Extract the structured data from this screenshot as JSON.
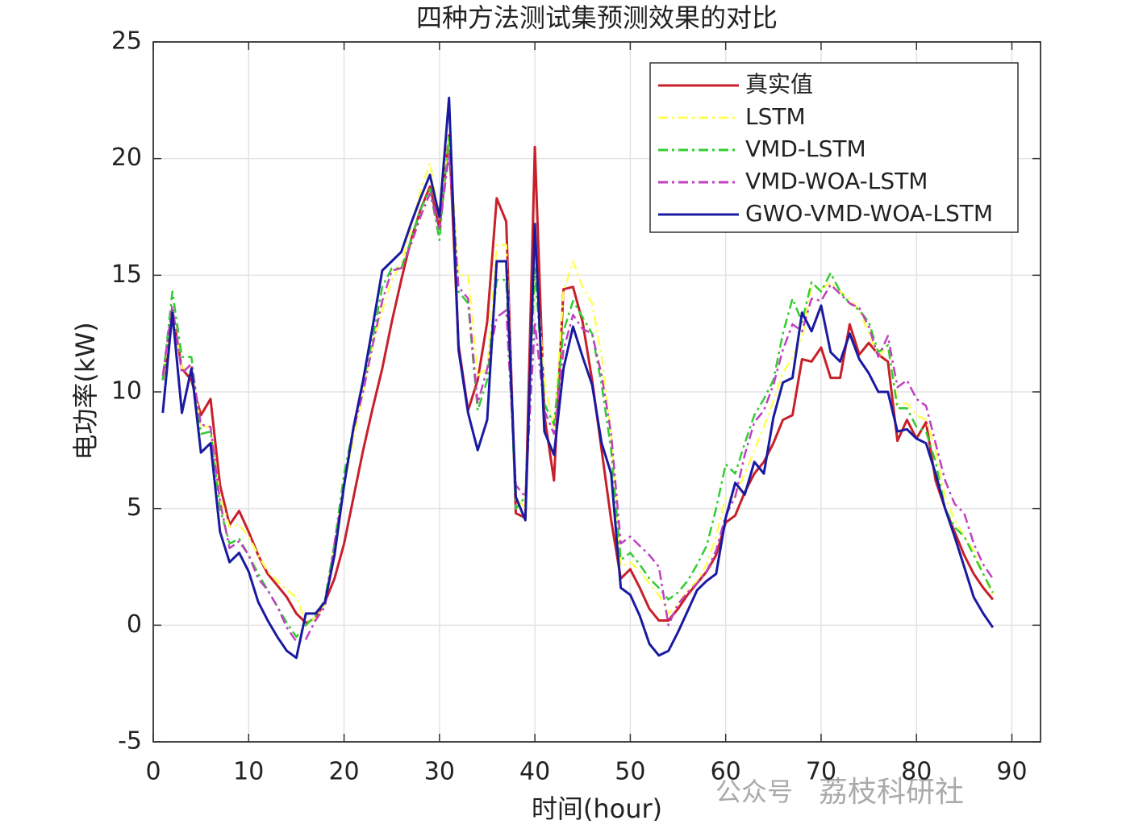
{
  "chart_data": {
    "type": "line",
    "title": "四种方法测试集预测效果的对比",
    "xlabel": "时间(hour)",
    "ylabel": "电功率(kW)",
    "watermark": [
      "公众号",
      "荔枝科研社"
    ],
    "xlim": [
      0,
      93
    ],
    "ylim": [
      -5,
      25
    ],
    "xticks": [
      0,
      10,
      20,
      30,
      40,
      50,
      60,
      70,
      80,
      90
    ],
    "yticks": [
      -5,
      0,
      5,
      10,
      15,
      20,
      25
    ],
    "grid": true,
    "legend": "upper right",
    "x": [
      1,
      2,
      3,
      4,
      5,
      6,
      7,
      8,
      9,
      10,
      11,
      12,
      13,
      14,
      15,
      16,
      17,
      18,
      19,
      20,
      21,
      22,
      23,
      24,
      25,
      26,
      27,
      28,
      29,
      30,
      31,
      32,
      33,
      34,
      35,
      36,
      37,
      38,
      39,
      40,
      41,
      42,
      43,
      44,
      45,
      46,
      47,
      48,
      49,
      50,
      51,
      52,
      53,
      54,
      55,
      56,
      57,
      58,
      59,
      60,
      61,
      62,
      63,
      64,
      65,
      66,
      67,
      68,
      69,
      70,
      71,
      72,
      73,
      74,
      75,
      76,
      77,
      78,
      79,
      80,
      81,
      82,
      83,
      84,
      85,
      86,
      87,
      88
    ],
    "series": [
      {
        "name": "真实值",
        "color": "#c8202a",
        "style": "solid",
        "values": [
          10.5,
          13.5,
          11,
          10.5,
          9,
          9.7,
          6,
          4.3,
          4.9,
          4,
          3,
          2.2,
          1.7,
          1.2,
          0.5,
          0.1,
          0.3,
          1,
          2,
          3.5,
          5.5,
          7.5,
          9.3,
          11,
          13,
          14.8,
          16.5,
          17.8,
          18.8,
          17,
          21,
          12,
          9.2,
          10.5,
          13,
          18.3,
          17.3,
          4.8,
          4.6,
          20.5,
          9,
          6.2,
          14.4,
          14.5,
          13,
          10.5,
          7.5,
          4.5,
          2,
          2.4,
          1.6,
          0.7,
          0.2,
          0.2,
          0.7,
          1.3,
          1.8,
          2.3,
          3,
          4.4,
          4.7,
          5.7,
          6.5,
          7,
          7.8,
          8.8,
          9,
          11.4,
          11.3,
          11.9,
          10.6,
          10.6,
          12.9,
          11.6,
          12.1,
          11.6,
          11.3,
          7.9,
          8.8,
          8,
          8.7,
          6.2,
          5,
          4,
          3,
          2.2,
          1.6,
          1.1
        ]
      },
      {
        "name": "LSTM",
        "color": "#ffff55",
        "style": "dashdot",
        "values": [
          10.6,
          13.5,
          11,
          11.1,
          8.5,
          8.5,
          5.5,
          4.2,
          4.3,
          3.8,
          3,
          2.3,
          1.9,
          1.5,
          1.2,
          0.1,
          0.3,
          0.9,
          3.5,
          6,
          8,
          10,
          12,
          13.5,
          14.8,
          15.5,
          17,
          18.6,
          19.8,
          17.5,
          21,
          15,
          15,
          10.7,
          11,
          16.3,
          16.3,
          5.5,
          5,
          15.8,
          10.5,
          8.4,
          14.3,
          15.6,
          14.5,
          13.8,
          11.5,
          8.2,
          2.5,
          2.7,
          2.3,
          1.8,
          1.3,
          0.5,
          0.9,
          1.5,
          1.9,
          2.6,
          3.8,
          5.5,
          5.5,
          6.5,
          7.5,
          8.5,
          9.6,
          10.8,
          11.5,
          12.3,
          14.5,
          14.4,
          14.7,
          14.3,
          14,
          13.5,
          12.5,
          11.5,
          12,
          9.5,
          9.5,
          9,
          8.8,
          7.5,
          5.5,
          4.5,
          3.8,
          3.2,
          2.2,
          1.3
        ]
      },
      {
        "name": "VMD-LSTM",
        "color": "#33cc33",
        "style": "dashdot",
        "values": [
          10.5,
          14.3,
          11.5,
          11.5,
          8.2,
          8.3,
          5,
          3.5,
          3.7,
          3,
          2.2,
          1.5,
          0.8,
          0.1,
          -0.5,
          0,
          0.4,
          1.1,
          3.5,
          6.5,
          8.5,
          10.4,
          12.3,
          14.5,
          15.3,
          15.3,
          16.5,
          17.8,
          18.7,
          16.5,
          21,
          14.3,
          13.8,
          9.2,
          10.5,
          14.8,
          14.8,
          5,
          5.5,
          15.3,
          9.5,
          8.6,
          12.6,
          13.9,
          13.2,
          12.5,
          10.3,
          7.5,
          2.8,
          3.1,
          2.6,
          2,
          1.6,
          1.1,
          1.4,
          1.9,
          2.6,
          3.4,
          5,
          6.9,
          6.5,
          7.8,
          9,
          9.7,
          10.5,
          12.5,
          14,
          13,
          14.7,
          14.3,
          15.1,
          14.3,
          13.8,
          13.5,
          13,
          11.7,
          12,
          9.3,
          9.3,
          8.5,
          8.3,
          7,
          5,
          4.2,
          3.8,
          3,
          2.2,
          1.4
        ]
      },
      {
        "name": "VMD-WOA-LSTM",
        "color": "#c040c0",
        "style": "dashdot",
        "values": [
          10.7,
          13.7,
          10.8,
          11.2,
          8.6,
          8.5,
          5.3,
          3.3,
          3.6,
          3,
          2,
          1.5,
          0.8,
          -0.1,
          -0.7,
          -0.6,
          0.2,
          0.8,
          3.5,
          6,
          8.4,
          10,
          12,
          13.9,
          15.2,
          15.3,
          16.3,
          17.5,
          18.5,
          17,
          20.2,
          14.5,
          14,
          9.5,
          11,
          13.2,
          13.5,
          6,
          5.5,
          13,
          9.2,
          8.2,
          11.8,
          13.3,
          12.7,
          12.5,
          10.7,
          8.2,
          3.5,
          3.8,
          3.4,
          3,
          2.5,
          0,
          0.9,
          1.4,
          1.8,
          2.3,
          3.2,
          4.7,
          5.5,
          7.3,
          8.7,
          9.2,
          10.3,
          11.8,
          12.9,
          12.6,
          14,
          13.9,
          14.6,
          14.2,
          13.8,
          13.6,
          12.8,
          11.5,
          12.4,
          10.2,
          10.5,
          9.7,
          9.4,
          7.8,
          6.2,
          5.2,
          4.8,
          3.5,
          2.6,
          2
        ]
      },
      {
        "name": "GWO-VMD-WOA-LSTM",
        "color": "#1a1aa0",
        "style": "solid",
        "values": [
          9.1,
          13.4,
          9.1,
          11,
          7.4,
          7.8,
          4,
          2.7,
          3.1,
          2.3,
          1,
          0.2,
          -0.5,
          -1.1,
          -1.4,
          0.5,
          0.5,
          1,
          3,
          6,
          8.5,
          10.5,
          12.8,
          15.2,
          15.6,
          16,
          17.2,
          18.3,
          19.3,
          17.5,
          22.6,
          11.8,
          9.1,
          7.5,
          8.8,
          15.6,
          15.6,
          5.5,
          4.5,
          17.2,
          8.3,
          7.3,
          11,
          12.8,
          11.5,
          10.3,
          7.8,
          6.5,
          1.6,
          1.3,
          0.4,
          -0.8,
          -1.3,
          -1.1,
          -0.3,
          0.6,
          1.5,
          1.9,
          2.2,
          4.6,
          6.1,
          5.6,
          7,
          6.5,
          8.9,
          10.4,
          10.6,
          13.4,
          12.6,
          13.7,
          11.7,
          11.3,
          12.5,
          11.4,
          10.8,
          10,
          10,
          8.3,
          8.4,
          8,
          7.8,
          6.5,
          5,
          3.8,
          2.5,
          1.2,
          0.5,
          -0.1
        ]
      }
    ]
  }
}
